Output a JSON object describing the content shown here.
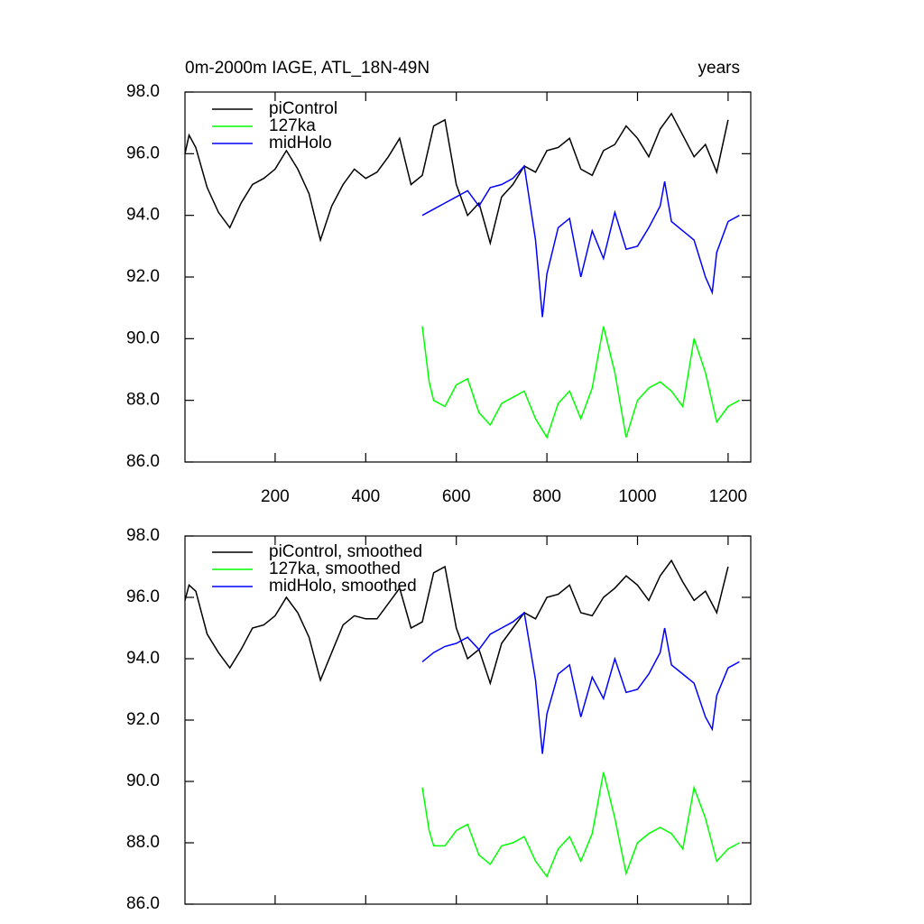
{
  "chart_data": [
    {
      "type": "line",
      "title": "0m-2000m IAGE, ATL_18N-49N",
      "units_label": "years",
      "xlim": [
        1,
        1250
      ],
      "xticks": [
        200,
        400,
        600,
        800,
        1000,
        1200
      ],
      "show_xtick_labels": true,
      "ylim": [
        86,
        98
      ],
      "yticks": [
        {
          "value": 86,
          "label": "86.0"
        },
        {
          "value": 88,
          "label": "88.0"
        },
        {
          "value": 90,
          "label": "90.0"
        },
        {
          "value": 92,
          "label": "92.0"
        },
        {
          "value": 94,
          "label": "94.0"
        },
        {
          "value": 96,
          "label": "96.0"
        },
        {
          "value": 98,
          "label": "98.0"
        }
      ],
      "series": [
        {
          "name": "piControl",
          "color": "#000000",
          "x": [
            1,
            10,
            25,
            50,
            75,
            100,
            125,
            150,
            175,
            200,
            225,
            250,
            275,
            300,
            325,
            350,
            375,
            400,
            425,
            450,
            475,
            500,
            525,
            550,
            575,
            600,
            625,
            650,
            675,
            700,
            725,
            750,
            775,
            800,
            825,
            850,
            875,
            900,
            925,
            950,
            975,
            1000,
            1025,
            1050,
            1075,
            1100,
            1125,
            1150,
            1175,
            1200
          ],
          "values": [
            96.0,
            96.6,
            96.2,
            94.9,
            94.1,
            93.6,
            94.4,
            95.0,
            95.2,
            95.5,
            96.1,
            95.5,
            94.7,
            93.2,
            94.3,
            95.0,
            95.5,
            95.2,
            95.4,
            95.9,
            96.5,
            95.0,
            95.3,
            96.9,
            97.1,
            95.0,
            94.0,
            94.4,
            93.1,
            94.6,
            95.0,
            95.6,
            95.4,
            96.1,
            96.2,
            96.5,
            95.5,
            95.3,
            96.1,
            96.3,
            96.9,
            96.5,
            95.9,
            96.8,
            97.3,
            96.6,
            95.9,
            96.3,
            95.4,
            97.1
          ]
        },
        {
          "name": "127ka",
          "color": "#00ff00",
          "x": [
            525,
            540,
            550,
            575,
            600,
            625,
            650,
            675,
            700,
            725,
            750,
            775,
            800,
            825,
            850,
            875,
            900,
            925,
            950,
            975,
            1000,
            1025,
            1050,
            1075,
            1100,
            1125,
            1150,
            1175,
            1200,
            1225
          ],
          "values": [
            90.4,
            88.6,
            88.0,
            87.8,
            88.5,
            88.7,
            87.6,
            87.2,
            87.9,
            88.1,
            88.3,
            87.4,
            86.8,
            87.9,
            88.3,
            87.4,
            88.4,
            90.4,
            88.9,
            86.8,
            88.0,
            88.4,
            88.6,
            88.3,
            87.8,
            90.0,
            88.9,
            87.3,
            87.8,
            88.0
          ]
        },
        {
          "name": "midHolo",
          "color": "#0000ff",
          "x": [
            525,
            550,
            575,
            600,
            625,
            650,
            675,
            700,
            725,
            750,
            775,
            790,
            800,
            825,
            850,
            875,
            900,
            925,
            950,
            975,
            1000,
            1025,
            1050,
            1060,
            1075,
            1100,
            1125,
            1150,
            1165,
            1175,
            1200,
            1225
          ],
          "values": [
            94.0,
            94.2,
            94.4,
            94.6,
            94.8,
            94.3,
            94.9,
            95.0,
            95.2,
            95.6,
            93.2,
            90.7,
            92.1,
            93.6,
            93.9,
            92.0,
            93.5,
            92.6,
            94.1,
            92.9,
            93.0,
            93.6,
            94.3,
            95.1,
            93.8,
            93.5,
            93.2,
            92.0,
            91.5,
            92.8,
            93.8,
            94.0
          ]
        }
      ]
    },
    {
      "type": "line",
      "xlim": [
        1,
        1250
      ],
      "xticks": [
        200,
        400,
        600,
        800,
        1000,
        1200
      ],
      "show_xtick_labels": false,
      "ylim": [
        86,
        98
      ],
      "yticks": [
        {
          "value": 86,
          "label": "86.0"
        },
        {
          "value": 88,
          "label": "88.0"
        },
        {
          "value": 90,
          "label": "90.0"
        },
        {
          "value": 92,
          "label": "92.0"
        },
        {
          "value": 94,
          "label": "94.0"
        },
        {
          "value": 96,
          "label": "96.0"
        },
        {
          "value": 98,
          "label": "98.0"
        }
      ],
      "series": [
        {
          "name": "piControl, smoothed",
          "color": "#000000",
          "x": [
            1,
            10,
            25,
            50,
            75,
            100,
            125,
            150,
            175,
            200,
            225,
            250,
            275,
            300,
            325,
            350,
            375,
            400,
            425,
            450,
            475,
            500,
            525,
            550,
            575,
            600,
            625,
            650,
            675,
            700,
            725,
            750,
            775,
            800,
            825,
            850,
            875,
            900,
            925,
            950,
            975,
            1000,
            1025,
            1050,
            1075,
            1100,
            1125,
            1150,
            1175,
            1200
          ],
          "values": [
            95.9,
            96.4,
            96.2,
            94.8,
            94.2,
            93.7,
            94.3,
            95.0,
            95.1,
            95.4,
            96.0,
            95.5,
            94.7,
            93.3,
            94.2,
            95.1,
            95.4,
            95.3,
            95.3,
            95.8,
            96.3,
            95.0,
            95.2,
            96.8,
            97.0,
            95.0,
            94.0,
            94.3,
            93.2,
            94.5,
            95.0,
            95.5,
            95.3,
            96.0,
            96.1,
            96.4,
            95.5,
            95.4,
            96.0,
            96.3,
            96.7,
            96.4,
            95.9,
            96.7,
            97.2,
            96.5,
            95.9,
            96.2,
            95.5,
            97.0
          ]
        },
        {
          "name": "127ka, smoothed",
          "color": "#00ff00",
          "x": [
            525,
            540,
            550,
            575,
            600,
            625,
            650,
            675,
            700,
            725,
            750,
            775,
            800,
            825,
            850,
            875,
            900,
            925,
            950,
            975,
            1000,
            1025,
            1050,
            1075,
            1100,
            1125,
            1150,
            1175,
            1200,
            1225
          ],
          "values": [
            89.8,
            88.4,
            87.9,
            87.9,
            88.4,
            88.6,
            87.6,
            87.3,
            87.9,
            88.0,
            88.2,
            87.4,
            86.9,
            87.8,
            88.2,
            87.4,
            88.3,
            90.3,
            88.8,
            87.0,
            88.0,
            88.3,
            88.5,
            88.3,
            87.8,
            89.8,
            88.8,
            87.4,
            87.8,
            88.0
          ]
        },
        {
          "name": "midHolo, smoothed",
          "color": "#0000ff",
          "x": [
            525,
            550,
            575,
            600,
            625,
            650,
            675,
            700,
            725,
            750,
            775,
            790,
            800,
            825,
            850,
            875,
            900,
            925,
            950,
            975,
            1000,
            1025,
            1050,
            1060,
            1075,
            1100,
            1125,
            1150,
            1165,
            1175,
            1200,
            1225
          ],
          "values": [
            93.9,
            94.2,
            94.4,
            94.5,
            94.7,
            94.3,
            94.8,
            95.0,
            95.2,
            95.5,
            93.3,
            90.9,
            92.2,
            93.5,
            93.8,
            92.1,
            93.4,
            92.7,
            94.0,
            92.9,
            93.0,
            93.5,
            94.2,
            95.0,
            93.8,
            93.5,
            93.2,
            92.1,
            91.7,
            92.8,
            93.7,
            93.9
          ]
        }
      ]
    }
  ]
}
